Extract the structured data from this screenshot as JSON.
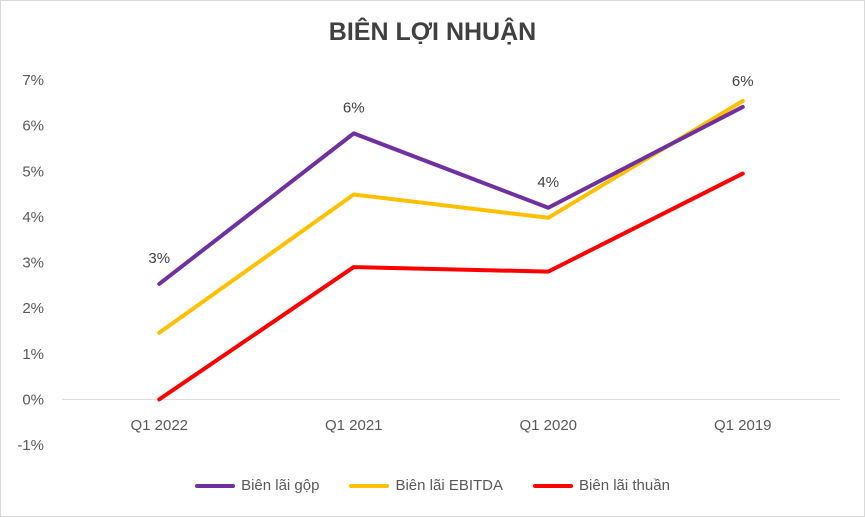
{
  "chart_data": {
    "type": "line",
    "title": "BIÊN LỢI NHUẬN",
    "categories": [
      "Q1 2022",
      "Q1 2021",
      "Q1 2020",
      "Q1 2019"
    ],
    "ylim": [
      -0.01,
      0.07
    ],
    "yticks": [
      -0.01,
      0,
      0.01,
      0.02,
      0.03,
      0.04,
      0.05,
      0.06,
      0.07
    ],
    "ytick_labels": [
      "-1%",
      "0%",
      "1%",
      "2%",
      "3%",
      "4%",
      "5%",
      "6%",
      "7%"
    ],
    "series": [
      {
        "name": "Biên lãi gộp",
        "color": "#7030A0",
        "values": [
          0.0253,
          0.0583,
          0.042,
          0.0641
        ],
        "data_labels": [
          "3%",
          "6%",
          "4%",
          "6%"
        ]
      },
      {
        "name": "Biên lãi EBITDA",
        "color": "#FFC000",
        "values": [
          0.0146,
          0.0449,
          0.0398,
          0.0654
        ]
      },
      {
        "name": "Biên lãi thuần",
        "color": "#FF0000",
        "values": [
          0.0,
          0.029,
          0.028,
          0.0495
        ]
      }
    ],
    "grid": false,
    "legend_position": "bottom"
  }
}
